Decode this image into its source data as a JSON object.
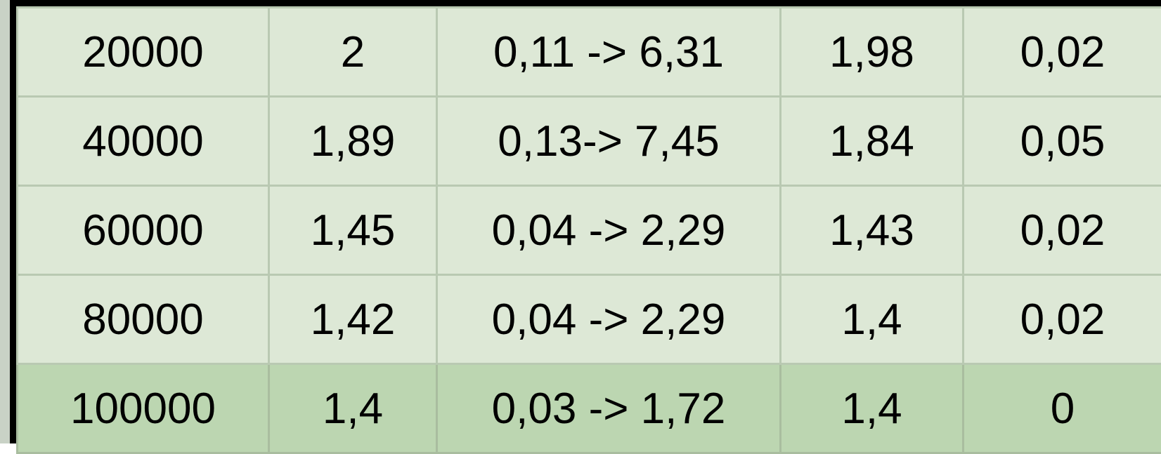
{
  "table": {
    "rows": [
      [
        "20000",
        "2",
        "0,11 -> 6,31",
        "1,98",
        "0,02"
      ],
      [
        "40000",
        "1,89",
        "0,13-> 7,45",
        "1,84",
        "0,05"
      ],
      [
        "60000",
        "1,45",
        "0,04 -> 2,29",
        "1,43",
        "0,02"
      ],
      [
        "80000",
        "1,42",
        "0,04 -> 2,29",
        "1,4",
        "0,02"
      ],
      [
        "100000",
        "1,4",
        "0,03 -> 1,72",
        "1,4",
        "0"
      ]
    ],
    "colors": {
      "row_background": "#dde8d6",
      "highlight_row_background": "#bcd6b1",
      "grid_line": "#b9c9b2",
      "outer_border": "#000000"
    }
  }
}
